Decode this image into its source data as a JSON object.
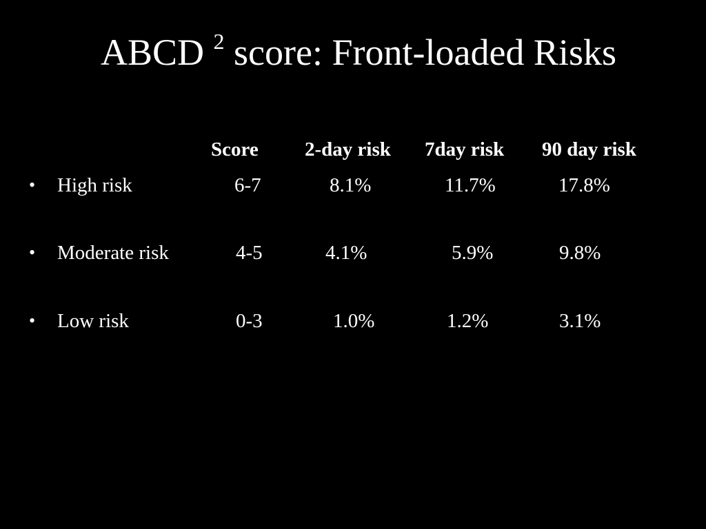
{
  "slide": {
    "title": {
      "main": "ABCD",
      "superscript": "2",
      "rest": "score: Front-loaded Risks"
    },
    "table": {
      "headers": [
        "Score",
        "2-day risk",
        "7day risk",
        "90 day risk"
      ],
      "bullet_glyph": "•",
      "rows": [
        {
          "label": "High risk",
          "score": "6-7",
          "day2": "8.1%",
          "day7": "11.7%",
          "day90": "17.8%"
        },
        {
          "label": "Moderate risk",
          "score": "4-5",
          "day2": "4.1%",
          "day7": "5.9%",
          "day90": "9.8%"
        },
        {
          "label": "Low risk",
          "score": "0-3",
          "day2": "1.0%",
          "day7": "1.2%",
          "day90": "3.1%"
        }
      ]
    }
  },
  "colors": {
    "background": "#000000",
    "text": "#ffffff"
  }
}
